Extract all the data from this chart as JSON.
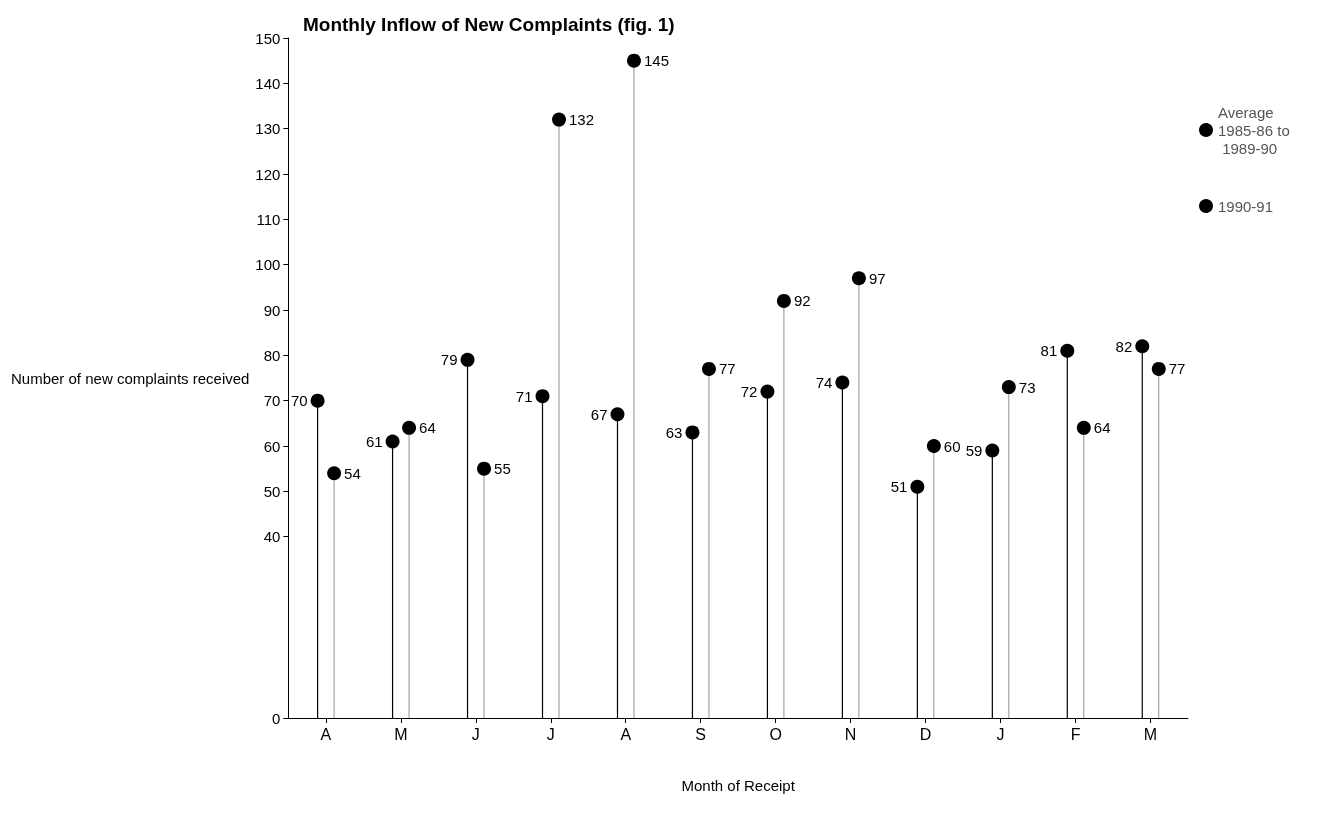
{
  "chart_data": {
    "type": "lollipop",
    "title": "Monthly Inflow of New Complaints (fig. 1)",
    "xlabel": "Month of Receipt",
    "ylabel": "Number of new complaints received",
    "categories": [
      "A",
      "M",
      "J",
      "J",
      "A",
      "S",
      "O",
      "N",
      "D",
      "J",
      "F",
      "M"
    ],
    "series": [
      {
        "name": "Average 1985-86 to 1989-90",
        "color": "#000000",
        "values": [
          70,
          61,
          79,
          71,
          67,
          63,
          72,
          74,
          51,
          59,
          81,
          82
        ]
      },
      {
        "name": "1990-91",
        "color": "#000000",
        "values": [
          54,
          64,
          55,
          132,
          145,
          77,
          92,
          97,
          60,
          73,
          64,
          77
        ]
      }
    ],
    "ylim": [
      0,
      150
    ],
    "yticks": [
      0,
      40,
      50,
      60,
      70,
      80,
      90,
      100,
      110,
      120,
      130,
      140,
      150
    ],
    "data_labels": true,
    "grid": false,
    "legend": "right",
    "marker": "circle"
  }
}
